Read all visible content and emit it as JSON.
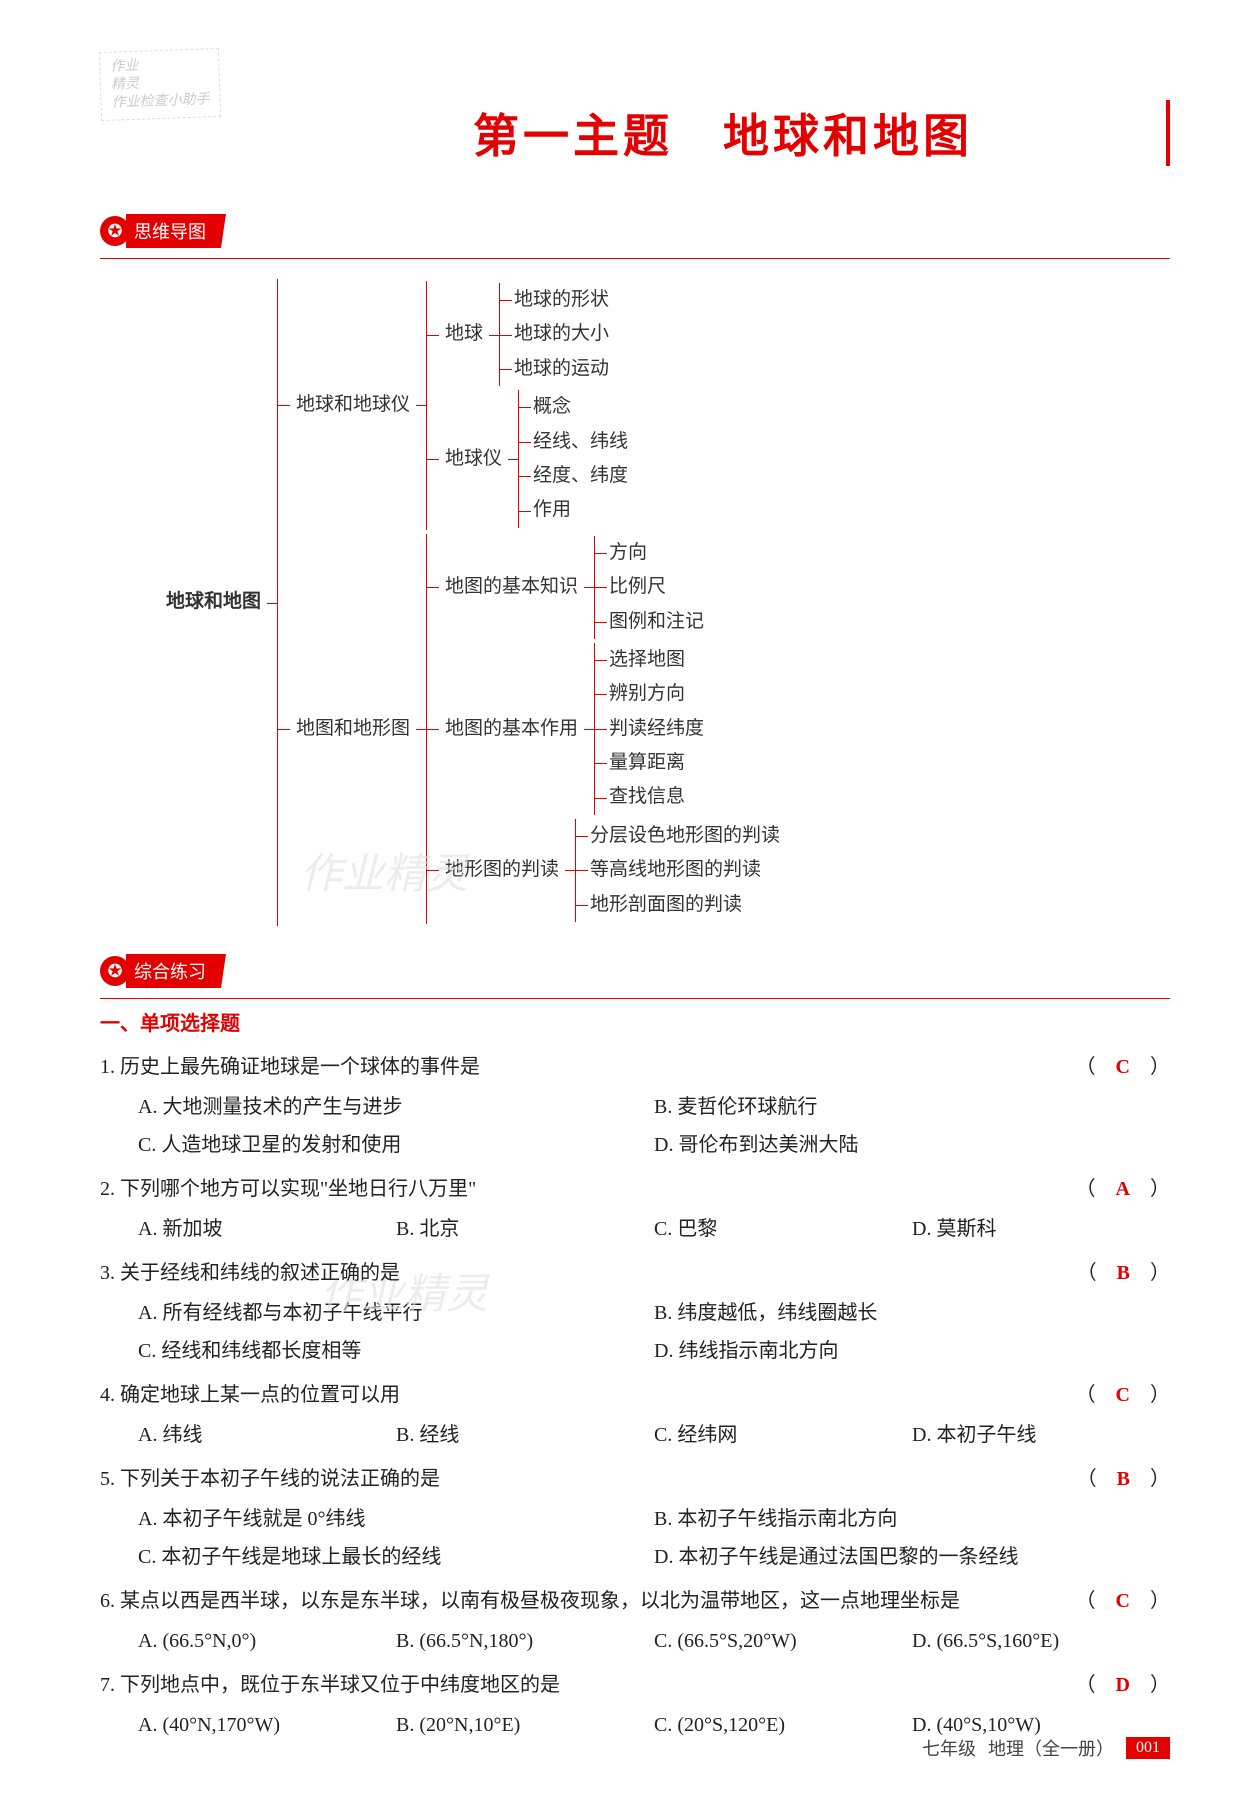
{
  "watermark_top": {
    "l1": "作业",
    "l2": "精灵",
    "l3": "作业检查小助手"
  },
  "title": {
    "main": "第一主题　地球和地图"
  },
  "sections": {
    "mindmap_label": "思维导图",
    "practice_label": "综合练习"
  },
  "mindmap": {
    "root": "地球和地图",
    "b1": {
      "label": "地球和地球仪",
      "c1": {
        "label": "地球",
        "leaves": [
          "地球的形状",
          "地球的大小",
          "地球的运动"
        ]
      },
      "c2": {
        "label": "地球仪",
        "leaves": [
          "概念",
          "经线、纬线",
          "经度、纬度",
          "作用"
        ]
      }
    },
    "b2": {
      "label": "地图和地形图",
      "c1": {
        "label": "地图的基本知识",
        "leaves": [
          "方向",
          "比例尺",
          "图例和注记"
        ]
      },
      "c2": {
        "label": "地图的基本作用",
        "leaves": [
          "选择地图",
          "辨别方向",
          "判读经纬度",
          "量算距离",
          "查找信息"
        ]
      },
      "c3": {
        "label": "地形图的判读",
        "leaves": [
          "分层设色地形图的判读",
          "等高线地形图的判读",
          "地形剖面图的判读"
        ]
      }
    }
  },
  "mcq_header": "一、单项选择题",
  "questions": [
    {
      "n": "1.",
      "stem": "历史上最先确证地球是一个球体的事件是",
      "ans": "C",
      "layout": "two",
      "opts": [
        "A. 大地测量技术的产生与进步",
        "B. 麦哲伦环球航行",
        "C. 人造地球卫星的发射和使用",
        "D. 哥伦布到达美洲大陆"
      ]
    },
    {
      "n": "2.",
      "stem": "下列哪个地方可以实现\"坐地日行八万里\"",
      "ans": "A",
      "layout": "four",
      "opts": [
        "A. 新加坡",
        "B. 北京",
        "C. 巴黎",
        "D. 莫斯科"
      ]
    },
    {
      "n": "3.",
      "stem": "关于经线和纬线的叙述正确的是",
      "ans": "B",
      "layout": "two",
      "opts": [
        "A. 所有经线都与本初子午线平行",
        "B. 纬度越低，纬线圈越长",
        "C. 经线和纬线都长度相等",
        "D. 纬线指示南北方向"
      ]
    },
    {
      "n": "4.",
      "stem": "确定地球上某一点的位置可以用",
      "ans": "C",
      "layout": "four",
      "opts": [
        "A. 纬线",
        "B. 经线",
        "C. 经纬网",
        "D. 本初子午线"
      ]
    },
    {
      "n": "5.",
      "stem": "下列关于本初子午线的说法正确的是",
      "ans": "B",
      "layout": "two",
      "opts": [
        "A. 本初子午线就是 0°纬线",
        "B. 本初子午线指示南北方向",
        "C. 本初子午线是地球上最长的经线",
        "D. 本初子午线是通过法国巴黎的一条经线"
      ]
    },
    {
      "n": "6.",
      "stem": "某点以西是西半球，以东是东半球，以南有极昼极夜现象，以北为温带地区，这一点地理坐标是",
      "ans": "C",
      "layout": "four",
      "opts": [
        "A. (66.5°N,0°)",
        "B. (66.5°N,180°)",
        "C. (66.5°S,20°W)",
        "D. (66.5°S,160°E)"
      ]
    },
    {
      "n": "7.",
      "stem": "下列地点中，既位于东半球又位于中纬度地区的是",
      "ans": "D",
      "layout": "four",
      "opts": [
        "A. (40°N,170°W)",
        "B. (20°N,10°E)",
        "C. (20°S,120°E)",
        "D. (40°S,10°W)"
      ]
    }
  ],
  "wm_mid1": "作业精灵",
  "wm_mid2": "作业精灵",
  "footer": {
    "grade": "七年级",
    "subject": "地理（全一册）",
    "page": "001"
  },
  "colors": {
    "accent": "#e30000",
    "text": "#222222",
    "wm": "#e0e0e0"
  }
}
